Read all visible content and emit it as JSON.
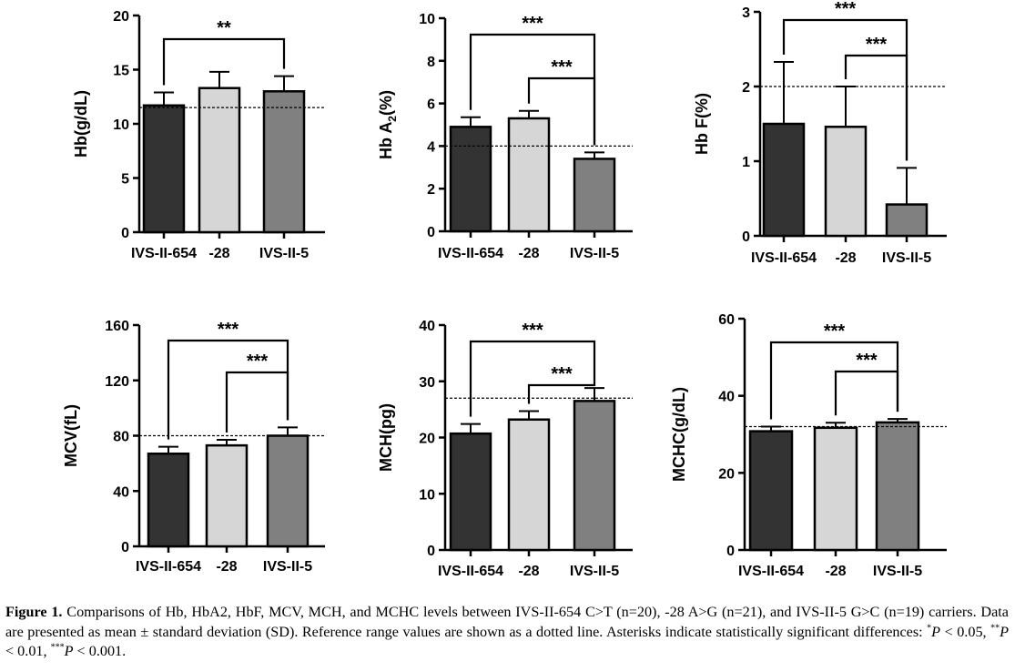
{
  "chart_data": [
    {
      "type": "bar",
      "categories": [
        "IVS-II-654",
        "-28",
        "IVS-II-5"
      ],
      "values": [
        11.7,
        13.3,
        13.0
      ],
      "errors": [
        1.2,
        1.5,
        1.4
      ],
      "ylabel": "Hb(g/dL)",
      "ylim": [
        0,
        20
      ],
      "yticks": [
        "0",
        "5",
        "10",
        "15",
        "20"
      ],
      "reference_line": 11.5,
      "bar_colors": [
        "#333333",
        "#d6d6d6",
        "#808080"
      ],
      "significance": [
        {
          "from": 0,
          "to": 2,
          "label": "**"
        }
      ]
    },
    {
      "type": "bar",
      "categories": [
        "IVS-II-654",
        "-28",
        "IVS-II-5"
      ],
      "values": [
        4.9,
        5.3,
        3.4
      ],
      "errors": [
        0.45,
        0.35,
        0.3
      ],
      "ylabel": "Hb A",
      "ylabel_sub": "2",
      "ylabel_suffix": "(%)",
      "ylim": [
        0,
        10
      ],
      "yticks": [
        "0",
        "2",
        "4",
        "6",
        "8",
        "10"
      ],
      "reference_line": 4.0,
      "bar_colors": [
        "#333333",
        "#d6d6d6",
        "#808080"
      ],
      "significance": [
        {
          "from": 0,
          "to": 2,
          "label": "***"
        },
        {
          "from": 1,
          "to": 2,
          "label": "***"
        }
      ]
    },
    {
      "type": "bar",
      "categories": [
        "IVS-II-654",
        "-28",
        "IVS-II-5"
      ],
      "values": [
        1.5,
        1.46,
        0.42
      ],
      "errors": [
        0.83,
        0.54,
        0.49
      ],
      "ylabel": "Hb F(%)",
      "ylim": [
        0,
        3
      ],
      "yticks": [
        "0",
        "1",
        "2",
        "3"
      ],
      "reference_line": 2.0,
      "bar_colors": [
        "#333333",
        "#d6d6d6",
        "#808080"
      ],
      "significance": [
        {
          "from": 0,
          "to": 2,
          "label": "***"
        },
        {
          "from": 1,
          "to": 2,
          "label": "***"
        }
      ]
    },
    {
      "type": "bar",
      "categories": [
        "IVS-II-654",
        "-28",
        "IVS-II-5"
      ],
      "values": [
        67,
        73,
        80
      ],
      "errors": [
        5,
        4,
        6
      ],
      "ylabel": "MCV(fL)",
      "ylim": [
        0,
        160
      ],
      "yticks": [
        "0",
        "40",
        "80",
        "120",
        "160"
      ],
      "reference_line": 80,
      "bar_colors": [
        "#333333",
        "#d6d6d6",
        "#808080"
      ],
      "significance": [
        {
          "from": 0,
          "to": 2,
          "label": "***"
        },
        {
          "from": 1,
          "to": 2,
          "label": "***"
        }
      ]
    },
    {
      "type": "bar",
      "categories": [
        "IVS-II-654",
        "-28",
        "IVS-II-5"
      ],
      "values": [
        20.7,
        23.2,
        26.5
      ],
      "errors": [
        1.7,
        1.5,
        2.3
      ],
      "ylabel": "MCH(pg)",
      "ylim": [
        0,
        40
      ],
      "yticks": [
        "0",
        "10",
        "20",
        "30",
        "40"
      ],
      "reference_line": 27,
      "bar_colors": [
        "#333333",
        "#d6d6d6",
        "#808080"
      ],
      "significance": [
        {
          "from": 0,
          "to": 2,
          "label": "***"
        },
        {
          "from": 1,
          "to": 2,
          "label": "***"
        }
      ]
    },
    {
      "type": "bar",
      "categories": [
        "IVS-II-654",
        "-28",
        "IVS-II-5"
      ],
      "values": [
        30.8,
        31.7,
        33.1
      ],
      "errors": [
        1.2,
        1.3,
        0.9
      ],
      "ylabel": "MCHC(g/dL)",
      "ylim": [
        0,
        60
      ],
      "yticks": [
        "0",
        "20",
        "40",
        "60"
      ],
      "reference_line": 32,
      "bar_colors": [
        "#333333",
        "#d6d6d6",
        "#808080"
      ],
      "significance": [
        {
          "from": 0,
          "to": 2,
          "label": "***"
        },
        {
          "from": 1,
          "to": 2,
          "label": "***"
        }
      ]
    }
  ],
  "caption": {
    "label": "Figure 1.",
    "text1": "Comparisons of Hb, HbA2, HbF, MCV, MCH, and MCHC levels between IVS-II-654 C>T (n=20), -28 A>G (n=21), and IVS-II-5 G>C (n=19) carriers. Data are presented as mean ± standard deviation (SD). Reference range values are shown as a dotted line. Asterisks indicate statistically significant differences: ",
    "s1": "*",
    "p1": "P",
    "t1": " < 0.05, ",
    "s2": "**",
    "p2": "P",
    "t2": " < 0.01, ",
    "s3": "***",
    "p3": "P",
    "t3": " < 0.001."
  }
}
